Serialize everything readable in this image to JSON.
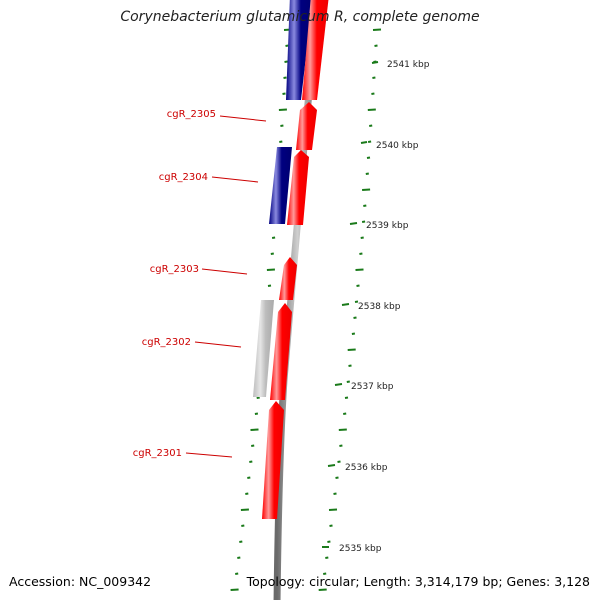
{
  "title": "Corynebacterium glutamicum R, complete genome",
  "footer": {
    "accession": "Accession: NC_009342",
    "summary": "Topology: circular; Length: 3,314,179 bp; Genes: 3,128"
  },
  "colors": {
    "forward_gene": "#ff0000",
    "forward_highlight": "#ff9a9a",
    "reverse_gene": "#000080",
    "reverse_highlight": "#8a8ae0",
    "other_feature": "#bdbdbd",
    "backbone": "#808080",
    "tick": "#1a7a1a",
    "label": "#cc0000",
    "scale_text": "#222222"
  },
  "scale_ticks": [
    "2541 kbp",
    "2540 kbp",
    "2539 kbp",
    "2538 kbp",
    "2537 kbp",
    "2536 kbp",
    "2535 kbp"
  ],
  "gene_labels": [
    "cgR_2305",
    "cgR_2304",
    "cgR_2303",
    "cgR_2302",
    "cgR_2301"
  ],
  "features": [
    {
      "strand": "reverse",
      "color": "reverse_gene"
    },
    {
      "strand": "forward",
      "color": "forward_gene"
    },
    {
      "strand": "forward",
      "color": "forward_gene",
      "label": "cgR_2305"
    },
    {
      "strand": "reverse",
      "color": "reverse_gene",
      "label": "cgR_2304"
    },
    {
      "strand": "forward",
      "color": "forward_gene"
    },
    {
      "strand": "forward",
      "color": "forward_gene",
      "label": "cgR_2303"
    },
    {
      "strand": "reverse",
      "color": "other_feature"
    },
    {
      "strand": "forward",
      "color": "forward_gene",
      "label": "cgR_2302"
    },
    {
      "strand": "forward",
      "color": "forward_gene",
      "label": "cgR_2301"
    }
  ]
}
